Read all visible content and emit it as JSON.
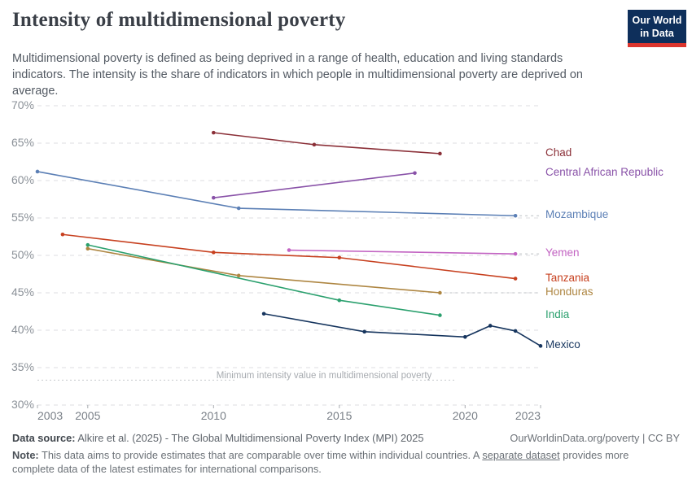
{
  "header": {
    "title": "Intensity of multidimensional poverty",
    "subtitle": "Multidimensional poverty is defined as being deprived in a range of health, education and living standards indicators. The intensity is the share of indicators in which people in multidimensional poverty are deprived on average.",
    "logo_line1": "Our World",
    "logo_line2": "in Data"
  },
  "chart_data": {
    "type": "line",
    "title": "Intensity of multidimensional poverty",
    "unit": "%",
    "x_axis": {
      "min": 2003,
      "max": 2023,
      "ticks": [
        2003,
        2005,
        2010,
        2015,
        2020,
        2023
      ]
    },
    "y_axis": {
      "min": 30,
      "max": 70,
      "ticks": [
        30,
        35,
        40,
        45,
        50,
        55,
        60,
        65,
        70
      ],
      "suffix": "%"
    },
    "grid": true,
    "legend_position": "right-labels",
    "annotation": {
      "text": "Minimum intensity value in multidimensional poverty",
      "value": 33.33
    },
    "series": [
      {
        "name": "Chad",
        "color": "#8b3038",
        "points": [
          [
            2010,
            66.4
          ],
          [
            2014,
            64.8
          ],
          [
            2019,
            63.6
          ]
        ]
      },
      {
        "name": "Central African Republic",
        "color": "#8952a8",
        "points": [
          [
            2010,
            57.7
          ],
          [
            2018,
            61.0
          ]
        ]
      },
      {
        "name": "Mozambique",
        "color": "#5b7fb5",
        "connector": true,
        "points": [
          [
            2003,
            61.2
          ],
          [
            2011,
            56.3
          ],
          [
            2022,
            55.3
          ]
        ]
      },
      {
        "name": "Yemen",
        "color": "#c263c2",
        "connector": true,
        "points": [
          [
            2013,
            50.7
          ],
          [
            2022,
            50.2
          ]
        ]
      },
      {
        "name": "Tanzania",
        "color": "#c7401f",
        "points": [
          [
            2004,
            52.8
          ],
          [
            2010,
            50.4
          ],
          [
            2015,
            49.7
          ],
          [
            2022,
            46.9
          ]
        ]
      },
      {
        "name": "Honduras",
        "color": "#ae8642",
        "connector": true,
        "points": [
          [
            2005,
            50.9
          ],
          [
            2011,
            47.3
          ],
          [
            2019,
            45.0
          ]
        ]
      },
      {
        "name": "India",
        "color": "#2ba06e",
        "points": [
          [
            2005,
            51.4
          ],
          [
            2015,
            44.0
          ],
          [
            2019,
            42.0
          ]
        ]
      },
      {
        "name": "Mexico",
        "color": "#16355e",
        "points": [
          [
            2012,
            42.2
          ],
          [
            2016,
            39.8
          ],
          [
            2020,
            39.1
          ],
          [
            2021,
            40.6
          ],
          [
            2022,
            39.9
          ],
          [
            2023,
            37.9
          ]
        ]
      }
    ]
  },
  "footer": {
    "datasource_label": "Data source:",
    "datasource_text": " Alkire et al. (2025) - The Global Multidimensional Poverty Index (MPI) 2025",
    "rights": "OurWorldinData.org/poverty | CC BY",
    "note_label": "Note:",
    "note_text_1": " This data aims to provide estimates that are comparable over time within individual countries. A ",
    "note_link": "separate dataset",
    "note_text_2": " provides more complete data of the latest estimates for international comparisons."
  }
}
